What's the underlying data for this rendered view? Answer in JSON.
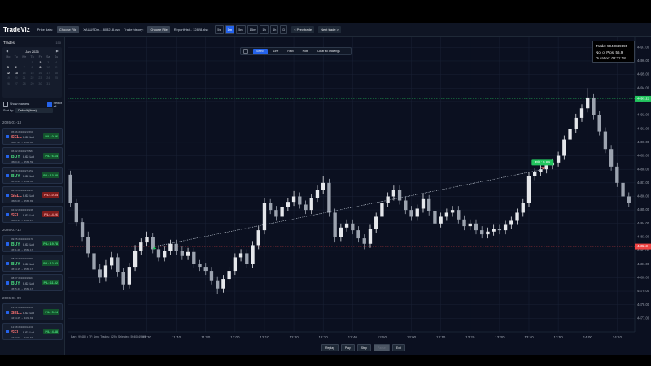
{
  "header": {
    "title": "TradeViz",
    "price_label": "Price data:",
    "price_button": "Choose File",
    "price_file": "XAUUSDm... 803218.csv",
    "trade_label": "Trade history:",
    "trade_button": "Choose File",
    "trade_file": "ReportHist... 12828.xlsx",
    "timeframes": [
      "5s",
      "1m",
      "5m",
      "15m",
      "1h",
      "4h",
      "D"
    ],
    "active_timeframe": 1,
    "prev": "< Prev trade",
    "next": "Next trade >"
  },
  "sidebar": {
    "title": "Trades",
    "count": 150,
    "calendar": {
      "month": "Jan 2026",
      "weekdays": [
        "Mo",
        "Tu",
        "We",
        "Th",
        "Fr",
        "Sa",
        "Su"
      ],
      "weeks": [
        [
          null,
          null,
          null,
          1,
          2,
          3,
          4
        ],
        [
          5,
          6,
          7,
          8,
          9,
          10,
          11
        ],
        [
          12,
          13,
          14,
          15,
          16,
          17,
          18
        ],
        [
          19,
          20,
          21,
          22,
          23,
          24,
          25
        ],
        [
          26,
          27,
          28,
          29,
          30,
          31,
          null
        ]
      ],
      "trade_days": [
        2,
        5,
        6,
        9,
        12,
        13
      ]
    },
    "show_markers": "Show markers",
    "select_all": "Select all",
    "sort_label": "Sort by:",
    "sort_value": "Default (time)",
    "groups": [
      {
        "date": "2026-01-13",
        "trades": [
          {
            "time": "05:46",
            "ticket": "#5940211590",
            "side": "SELL",
            "lot": "0.02 Lot",
            "pl": "P/L: 0.36",
            "prices": "4587.21 → 4586.85",
            "win": true
          },
          {
            "time": "06:42",
            "ticket": "#5940273584",
            "side": "BUY",
            "lot": "0.02 Lot",
            "pl": "P/L: 6.64",
            "prices": "4580.27 → 4583.59",
            "win": true
          },
          {
            "time": "05:26",
            "ticket": "#5940271152",
            "side": "BUY",
            "lot": "0.02 Lot",
            "pl": "P/L: 13.88",
            "prices": "4576.41 → 4583.35",
            "win": true
          },
          {
            "time": "04:24",
            "ticket": "#5940213256",
            "side": "SELL",
            "lot": "0.02 Lot",
            "pl": "P/L: -0.34",
            "prices": "4586.66 → 4586.83",
            "win": false
          },
          {
            "time": "04:02",
            "ticket": "#5940132248",
            "side": "SELL",
            "lot": "0.02 Lot",
            "pl": "P/L: -4.26",
            "prices": "4584.14 → 4586.27",
            "win": false
          }
        ]
      },
      {
        "date": "2026-01-12",
        "trades": [
          {
            "time": "09:25",
            "ticket": "#5940168171",
            "side": "BUY",
            "lot": "0.02 Lot",
            "pl": "P/L: 19.78",
            "prices": "4571.28 → 4581.17",
            "win": true
          },
          {
            "time": "08:59",
            "ticket": "#5940198790",
            "side": "BUY",
            "lot": "0.02 Lot",
            "pl": "P/L: 12.03",
            "prices": "4574.15 → 4580.17",
            "win": true
          },
          {
            "time": "08:07",
            "ticket": "#5940198924",
            "side": "BUY",
            "lot": "0.02 Lot",
            "pl": "P/L: 11.52",
            "prices": "4575.41 → 4581.17",
            "win": true
          }
        ]
      },
      {
        "date": "2026-01-09",
        "trades": [
          {
            "time": "13:21",
            "ticket": "#5940011230",
            "side": "SELL",
            "lot": "0.02 Lot",
            "pl": "P/L: 5.24",
            "prices": "4474.25 → 4471.63",
            "win": true
          },
          {
            "time": "12:58",
            "ticket": "#5940011231",
            "side": "SELL",
            "lot": "0.02 Lot",
            "pl": "P/L: 4.48",
            "prices": "4473.91 → 4471.67",
            "win": true
          }
        ]
      }
    ]
  },
  "toolbar": {
    "tools": [
      "Select",
      "Line",
      "Rect",
      "Note",
      "Clear all drawings"
    ],
    "active": 0
  },
  "info": {
    "trade": "Trade: 5940849195",
    "pips": "No. of Pips: 56.9",
    "duration": "Duration: 02:11:18"
  },
  "status": "Bars: 99480 • TF: 1m • Trades: 529 • Selected: 5940849195",
  "playback": {
    "buttons": [
      "Replay",
      "Play",
      "Step",
      "Pause",
      "Exit"
    ],
    "disabled": 3
  },
  "chart_data": {
    "type": "candlestick",
    "bull_color": "#e5e7eb",
    "bear_color": "#9ca3af",
    "grid": true,
    "xlim": [
      -0.5,
      96
    ],
    "xticks": [
      {
        "value": 13,
        "label": "11:30"
      },
      {
        "value": 18,
        "label": "11:40"
      },
      {
        "value": 23,
        "label": "11:50"
      },
      {
        "value": 28,
        "label": "12:00"
      },
      {
        "value": 33,
        "label": "12:10"
      },
      {
        "value": 38,
        "label": "12:20"
      },
      {
        "value": 43,
        "label": "12:30"
      },
      {
        "value": 48,
        "label": "12:40"
      },
      {
        "value": 53,
        "label": "12:50"
      },
      {
        "value": 58,
        "label": "13:00"
      },
      {
        "value": 63,
        "label": "13:10"
      },
      {
        "value": 68,
        "label": "13:20"
      },
      {
        "value": 73,
        "label": "13:30"
      },
      {
        "value": 78,
        "label": "13:40"
      },
      {
        "value": 83,
        "label": "13:50"
      },
      {
        "value": 88,
        "label": "14:00"
      },
      {
        "value": 93,
        "label": "14:10"
      }
    ],
    "ylim": [
      4476,
      4497.8
    ],
    "yticks": [
      {
        "value": 4477,
        "label": "4477.00"
      },
      {
        "value": 4478,
        "label": "4478.00"
      },
      {
        "value": 4479,
        "label": "4479.00"
      },
      {
        "value": 4480,
        "label": "4480.00"
      },
      {
        "value": 4481,
        "label": "4481.00"
      },
      {
        "value": 4482,
        "label": "4482.00"
      },
      {
        "value": 4483,
        "label": "4483.00"
      },
      {
        "value": 4484,
        "label": "4484.00"
      },
      {
        "value": 4485,
        "label": "4485.00"
      },
      {
        "value": 4486,
        "label": "4486.00"
      },
      {
        "value": 4487,
        "label": "4487.00"
      },
      {
        "value": 4488,
        "label": "4488.00"
      },
      {
        "value": 4489,
        "label": "4489.00"
      },
      {
        "value": 4490,
        "label": "4490.00"
      },
      {
        "value": 4491,
        "label": "4491.00"
      },
      {
        "value": 4492,
        "label": "4492.00"
      },
      {
        "value": 4493,
        "label": "4493.00"
      },
      {
        "value": 4494,
        "label": "4494.00"
      },
      {
        "value": 4495,
        "label": "4495.00"
      },
      {
        "value": 4496,
        "label": "4496.00"
      },
      {
        "value": 4497,
        "label": "4497.00"
      }
    ],
    "levels": [
      {
        "value": 4493.21,
        "color": "#22c55e"
      },
      {
        "value": 4482.3,
        "color": "#ef4444"
      }
    ],
    "trade": {
      "entry_x": 14.3,
      "entry_price": 4482.3,
      "exit_x": 80.4,
      "exit_price": 4487.99,
      "label": "P/L: 5.69",
      "color": "#22c55e"
    },
    "ohlc": [
      [
        4487.6,
        4487.9,
        4485.2,
        4485.5
      ],
      [
        4485.5,
        4485.8,
        4483.8,
        4484.1
      ],
      [
        4484.1,
        4484.4,
        4482.7,
        4483.0
      ],
      [
        4483.0,
        4483.4,
        4481.5,
        4481.8
      ],
      [
        4481.8,
        4482.2,
        4480.3,
        4480.6
      ],
      [
        4480.6,
        4481.0,
        4479.6,
        4480.0
      ],
      [
        4480.0,
        4481.3,
        4479.7,
        4480.9
      ],
      [
        4480.9,
        4481.9,
        4480.6,
        4481.5
      ],
      [
        4481.5,
        4481.8,
        4480.1,
        4480.4
      ],
      [
        4480.4,
        4480.7,
        4479.1,
        4479.5
      ],
      [
        4479.5,
        4481.1,
        4479.2,
        4480.8
      ],
      [
        4480.8,
        4482.4,
        4480.5,
        4482.0
      ],
      [
        4482.0,
        4482.9,
        4481.7,
        4482.6
      ],
      [
        4482.6,
        4483.4,
        4482.3,
        4483.0
      ],
      [
        4483.0,
        4483.3,
        4481.8,
        4482.1
      ],
      [
        4482.1,
        4482.4,
        4481.2,
        4481.5
      ],
      [
        4481.5,
        4482.3,
        4481.2,
        4482.0
      ],
      [
        4482.0,
        4482.8,
        4481.7,
        4482.5
      ],
      [
        4482.5,
        4482.8,
        4481.7,
        4482.0
      ],
      [
        4482.0,
        4482.3,
        4481.3,
        4481.6
      ],
      [
        4481.6,
        4482.2,
        4481.3,
        4481.9
      ],
      [
        4481.9,
        4482.2,
        4480.7,
        4481.0
      ],
      [
        4481.0,
        4481.3,
        4480.5,
        4480.8
      ],
      [
        4480.8,
        4481.1,
        4480.2,
        4480.5
      ],
      [
        4480.5,
        4480.8,
        4479.5,
        4479.8
      ],
      [
        4479.8,
        4480.1,
        4478.8,
        4479.2
      ],
      [
        4479.2,
        4480.2,
        4478.9,
        4479.9
      ],
      [
        4479.9,
        4480.8,
        4479.6,
        4480.5
      ],
      [
        4480.5,
        4481.8,
        4480.2,
        4481.5
      ],
      [
        4481.5,
        4482.1,
        4481.2,
        4481.8
      ],
      [
        4481.8,
        4482.1,
        4480.7,
        4481.0
      ],
      [
        4481.0,
        4482.7,
        4480.7,
        4482.4
      ],
      [
        4482.4,
        4483.8,
        4482.1,
        4483.5
      ],
      [
        4483.5,
        4485.9,
        4483.2,
        4485.5
      ],
      [
        4485.5,
        4485.8,
        4484.7,
        4485.0
      ],
      [
        4485.0,
        4485.3,
        4484.2,
        4484.5
      ],
      [
        4484.5,
        4485.5,
        4484.2,
        4485.2
      ],
      [
        4485.2,
        4485.9,
        4484.9,
        4485.6
      ],
      [
        4485.6,
        4486.4,
        4485.3,
        4486.0
      ],
      [
        4486.0,
        4486.3,
        4485.1,
        4485.4
      ],
      [
        4485.4,
        4485.7,
        4484.7,
        4485.0
      ],
      [
        4485.0,
        4486.2,
        4484.7,
        4485.9
      ],
      [
        4485.9,
        4486.8,
        4485.6,
        4486.5
      ],
      [
        4486.5,
        4487.5,
        4486.2,
        4487.0
      ],
      [
        4487.0,
        4487.3,
        4484.5,
        4484.8
      ],
      [
        4484.8,
        4485.1,
        4482.6,
        4483.0
      ],
      [
        4483.0,
        4484.0,
        4482.7,
        4483.7
      ],
      [
        4483.7,
        4484.3,
        4483.4,
        4484.0
      ],
      [
        4484.0,
        4484.3,
        4483.2,
        4483.5
      ],
      [
        4483.5,
        4483.8,
        4482.6,
        4482.9
      ],
      [
        4482.9,
        4483.2,
        4482.1,
        4482.5
      ],
      [
        4482.5,
        4483.9,
        4482.2,
        4483.6
      ],
      [
        4483.6,
        4484.8,
        4483.3,
        4484.5
      ],
      [
        4484.5,
        4485.8,
        4484.2,
        4485.5
      ],
      [
        4485.5,
        4486.3,
        4485.2,
        4486.0
      ],
      [
        4486.0,
        4486.8,
        4485.7,
        4486.5
      ],
      [
        4486.5,
        4486.8,
        4485.4,
        4485.7
      ],
      [
        4485.7,
        4486.0,
        4484.7,
        4485.0
      ],
      [
        4485.0,
        4485.3,
        4484.2,
        4484.5
      ],
      [
        4484.5,
        4485.4,
        4484.2,
        4485.1
      ],
      [
        4485.1,
        4486.2,
        4484.8,
        4485.8
      ],
      [
        4485.8,
        4486.1,
        4484.6,
        4484.9
      ],
      [
        4484.9,
        4485.2,
        4483.7,
        4484.0
      ],
      [
        4484.0,
        4484.8,
        4483.7,
        4484.5
      ],
      [
        4484.5,
        4485.1,
        4484.2,
        4484.8
      ],
      [
        4484.8,
        4485.3,
        4484.5,
        4485.0
      ],
      [
        4485.0,
        4485.3,
        4484.0,
        4484.3
      ],
      [
        4484.3,
        4484.6,
        4483.5,
        4483.8
      ],
      [
        4483.8,
        4484.3,
        4483.5,
        4484.0
      ],
      [
        4484.0,
        4484.3,
        4483.2,
        4483.5
      ],
      [
        4483.5,
        4483.8,
        4482.9,
        4483.2
      ],
      [
        4483.2,
        4483.7,
        4482.9,
        4483.4
      ],
      [
        4483.4,
        4483.9,
        4483.1,
        4483.6
      ],
      [
        4483.6,
        4483.9,
        4483.2,
        4483.5
      ],
      [
        4483.5,
        4484.2,
        4483.2,
        4483.9
      ],
      [
        4483.9,
        4484.5,
        4483.6,
        4484.2
      ],
      [
        4484.2,
        4485.1,
        4483.9,
        4484.8
      ],
      [
        4484.8,
        4485.8,
        4484.5,
        4485.5
      ],
      [
        4485.5,
        4487.8,
        4485.2,
        4487.5
      ],
      [
        4487.5,
        4488.1,
        4487.2,
        4487.8
      ],
      [
        4487.8,
        4488.3,
        4487.5,
        4488.0
      ],
      [
        4488.0,
        4488.6,
        4487.7,
        4488.3
      ],
      [
        4488.3,
        4488.8,
        4488.0,
        4488.5
      ],
      [
        4488.5,
        4489.3,
        4488.2,
        4489.0
      ],
      [
        4489.0,
        4490.5,
        4488.7,
        4490.2
      ],
      [
        4490.2,
        4491.3,
        4489.9,
        4491.0
      ],
      [
        4491.0,
        4492.1,
        4490.7,
        4491.8
      ],
      [
        4491.8,
        4492.8,
        4491.5,
        4492.5
      ],
      [
        4492.5,
        4494.0,
        4492.2,
        4493.3
      ],
      [
        4493.3,
        4493.6,
        4491.7,
        4492.0
      ],
      [
        4492.0,
        4492.3,
        4490.5,
        4490.8
      ],
      [
        4490.8,
        4491.1,
        4489.2,
        4489.5
      ],
      [
        4489.5,
        4489.8,
        4487.9,
        4488.2
      ],
      [
        4488.2,
        4488.5,
        4486.7,
        4487.0
      ],
      [
        4487.0,
        4487.3,
        4485.7,
        4486.0
      ],
      [
        4486.0,
        4486.3,
        4485.2,
        4485.5
      ]
    ]
  }
}
